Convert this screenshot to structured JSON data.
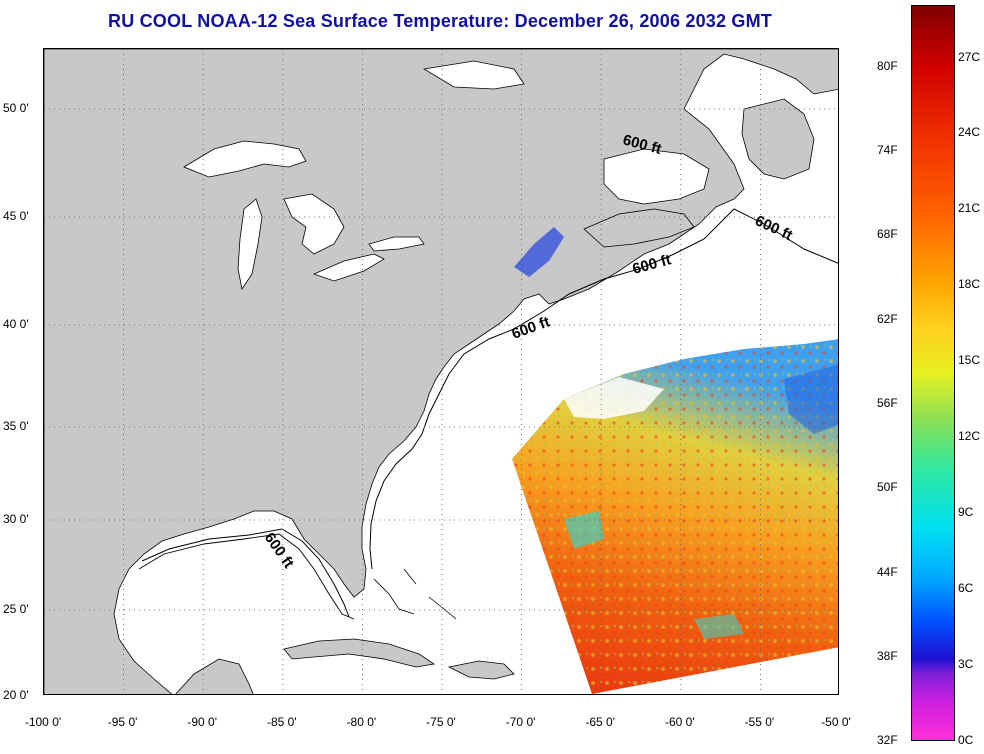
{
  "title": "RU COOL  NOAA-12  Sea Surface Temperature:  December 26, 2006 2032 GMT",
  "map": {
    "lon_labels": [
      "-100 0'",
      "-95 0'",
      "-90 0'",
      "-85 0'",
      "-80 0'",
      "-75 0'",
      "-70 0'",
      "-65 0'",
      "-60 0'",
      "-55 0'",
      "-50 0'"
    ],
    "lat_labels": [
      "20 0'",
      "25 0'",
      "30 0'",
      "35 0'",
      "40 0'",
      "45 0'",
      "50 0'"
    ],
    "depth_label": "600 ft",
    "land_color": "#c8c8c8",
    "ocean_color": "#ffffff"
  },
  "colorbar": {
    "fahrenheit_labels": [
      "80F",
      "74F",
      "68F",
      "62F",
      "56F",
      "50F",
      "44F",
      "38F",
      "32F"
    ],
    "celsius_labels": [
      "27C",
      "24C",
      "21C",
      "18C",
      "15C",
      "12C",
      "9C",
      "6C",
      "3C",
      "0C"
    ]
  }
}
